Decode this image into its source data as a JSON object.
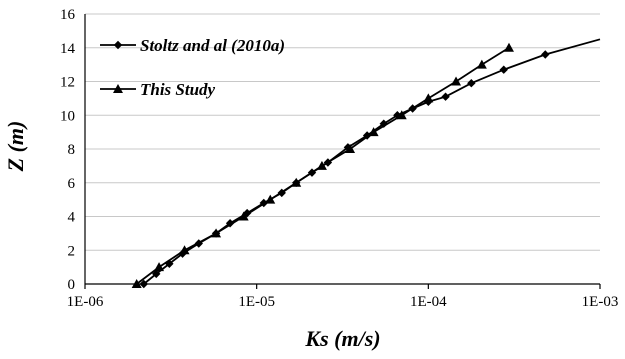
{
  "chart_data": {
    "type": "line",
    "xlabel": "Ks (m/s)",
    "ylabel": "Z (m)",
    "x_scale": "log",
    "xlim": [
      1e-06,
      0.001
    ],
    "ylim": [
      0,
      16
    ],
    "x_ticks": [
      1e-06,
      1e-05,
      0.0001,
      0.001
    ],
    "x_tick_labels": [
      "1E-06",
      "1E-05",
      "1E-04",
      "1E-03"
    ],
    "y_ticks": [
      0,
      2,
      4,
      6,
      8,
      10,
      12,
      14,
      16
    ],
    "y_tick_labels": [
      "0",
      "2",
      "4",
      "6",
      "8",
      "10",
      "12",
      "14",
      "16"
    ],
    "grid": "horizontal",
    "legend_position": "top-left",
    "series": [
      {
        "name": "Stoltz and al (2010a)",
        "marker": "diamond",
        "x": [
          2.2e-06,
          2.6e-06,
          3.1e-06,
          3.7e-06,
          4.6e-06,
          5.8e-06,
          7e-06,
          8.8e-06,
          1.1e-05,
          1.4e-05,
          1.7e-05,
          2.1e-05,
          2.6e-05,
          3.4e-05,
          4.4e-05,
          5.5e-05,
          6.6e-05,
          8.1e-05,
          0.0001,
          0.000126,
          0.000178,
          0.000275,
          0.00048
        ],
        "y": [
          0.0,
          0.6,
          1.2,
          1.8,
          2.4,
          3.0,
          3.6,
          4.2,
          4.8,
          5.4,
          6.0,
          6.6,
          7.2,
          8.1,
          8.8,
          9.5,
          10.0,
          10.4,
          10.8,
          11.1,
          11.9,
          12.7,
          13.6
        ],
        "tail_x": [
          0.001
        ],
        "tail_y": [
          14.5
        ]
      },
      {
        "name": "This Study",
        "marker": "triangle",
        "x": [
          2e-06,
          2.7e-06,
          3.8e-06,
          5.8e-06,
          8.4e-06,
          1.2e-05,
          1.7e-05,
          2.4e-05,
          3.5e-05,
          4.8e-05,
          7e-05,
          0.0001,
          0.000145,
          0.000205,
          0.000295
        ],
        "y": [
          0.0,
          1.0,
          2.0,
          3.0,
          4.0,
          5.0,
          6.0,
          7.0,
          8.0,
          9.0,
          10.0,
          11.0,
          12.0,
          13.0,
          14.0
        ]
      }
    ]
  }
}
